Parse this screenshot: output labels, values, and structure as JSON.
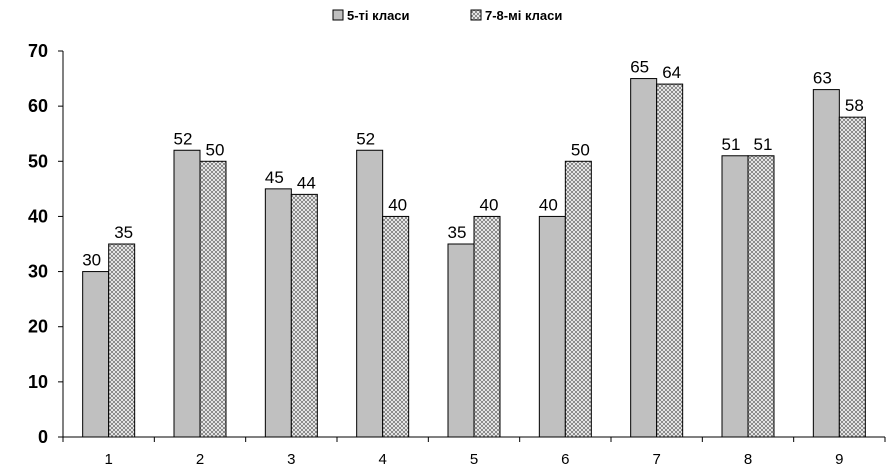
{
  "chart_data": {
    "type": "bar",
    "title": "",
    "xlabel": "",
    "ylabel": "",
    "categories": [
      "1",
      "2",
      "3",
      "4",
      "5",
      "6",
      "7",
      "8",
      "9"
    ],
    "series": [
      {
        "name": "5-ті класи",
        "values": [
          30,
          52,
          45,
          52,
          35,
          40,
          65,
          51,
          63
        ],
        "fill": "#c0c0c0",
        "pattern": "solid"
      },
      {
        "name": "7-8-мі класи",
        "values": [
          35,
          50,
          44,
          40,
          40,
          50,
          64,
          51,
          58
        ],
        "fill": "#ffffff",
        "pattern": "crosshatch"
      }
    ],
    "ylim": [
      0,
      70
    ],
    "yticks": [
      0,
      10,
      20,
      30,
      40,
      50,
      60,
      70
    ],
    "grid": false,
    "legend_position": "top-center",
    "data_labels": true
  }
}
